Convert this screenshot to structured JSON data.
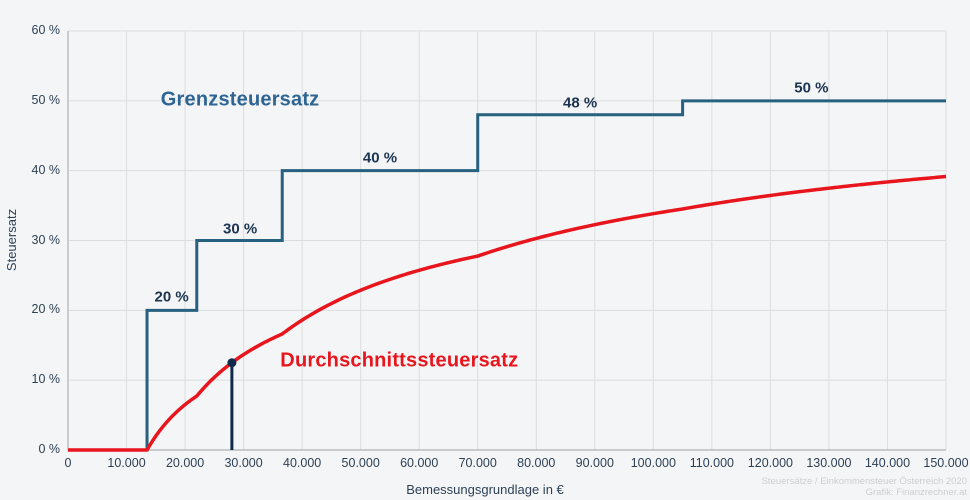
{
  "colors": {
    "background": "#f4f5f7",
    "grid": "#dcdde0",
    "axis": "#b9bcc0",
    "tick_text": "#2e4154",
    "axis_title_text": "#2e4154",
    "step_line": "#27617f",
    "step_label_text": "#1b3450",
    "grenz_label_text": "#2e6593",
    "avg_line": "#e8151d",
    "avg_label_text": "#e8151d",
    "marker": "#102b49",
    "footer_text": "#cdced0"
  },
  "footer": {
    "line1": "Steuersätze / Einkommensteuer Österreich 2020",
    "line2": "Grafik: Finanzrechner.at"
  },
  "chart_data": {
    "type": "line",
    "title": "",
    "xlabel": "Bemessungsgrundlage in €",
    "ylabel": "Steuersatz",
    "xlim": [
      0,
      150000
    ],
    "ylim": [
      0,
      60
    ],
    "grid": true,
    "x_ticks": [
      {
        "value": 0,
        "label": "0"
      },
      {
        "value": 10000,
        "label": "10.000"
      },
      {
        "value": 20000,
        "label": "20.000"
      },
      {
        "value": 30000,
        "label": "30.000"
      },
      {
        "value": 40000,
        "label": "40.000"
      },
      {
        "value": 50000,
        "label": "50.000"
      },
      {
        "value": 60000,
        "label": "60.000"
      },
      {
        "value": 70000,
        "label": "70.000"
      },
      {
        "value": 80000,
        "label": "80.000"
      },
      {
        "value": 90000,
        "label": "90.000"
      },
      {
        "value": 100000,
        "label": "100.000"
      },
      {
        "value": 110000,
        "label": "110.000"
      },
      {
        "value": 120000,
        "label": "120.000"
      },
      {
        "value": 130000,
        "label": "130.000"
      },
      {
        "value": 140000,
        "label": "140.000"
      },
      {
        "value": 150000,
        "label": "150.000"
      }
    ],
    "y_ticks": [
      {
        "value": 0,
        "label": "0 %"
      },
      {
        "value": 10,
        "label": "10 %"
      },
      {
        "value": 20,
        "label": "20 %"
      },
      {
        "value": 30,
        "label": "30 %"
      },
      {
        "value": 40,
        "label": "40 %"
      },
      {
        "value": 50,
        "label": "50 %"
      },
      {
        "value": 60,
        "label": "60 %"
      }
    ],
    "series": [
      {
        "name": "Grenzsteuersatz",
        "type": "step",
        "label": {
          "text": "Grenzsteuersatz",
          "x": 29400,
          "y": 50.1
        },
        "brackets": [
          {
            "threshold": 0,
            "rate": 0
          },
          {
            "threshold": 13500,
            "rate": 20
          },
          {
            "threshold": 22000,
            "rate": 30
          },
          {
            "threshold": 36600,
            "rate": 40
          },
          {
            "threshold": 70000,
            "rate": 48
          },
          {
            "threshold": 105000,
            "rate": 50
          }
        ],
        "step_labels": [
          {
            "text": "20 %",
            "x": 17700,
            "y": 21.9
          },
          {
            "text": "30 %",
            "x": 29400,
            "y": 31.7
          },
          {
            "text": "40 %",
            "x": 53300,
            "y": 41.8
          },
          {
            "text": "48 %",
            "x": 87500,
            "y": 49.7
          },
          {
            "text": "50 %",
            "x": 127000,
            "y": 51.9
          }
        ]
      },
      {
        "name": "Durchschnittssteuersatz",
        "type": "average-curve",
        "label": {
          "text": "Durchschnittssteuersatz",
          "x": 56600,
          "y": 12.7
        },
        "key_points": [
          {
            "x": 13500,
            "y": 0
          },
          {
            "x": 22000,
            "y": 7.7
          },
          {
            "x": 28000,
            "y": 12.5
          },
          {
            "x": 36600,
            "y": 16.6
          },
          {
            "x": 70000,
            "y": 27.8
          },
          {
            "x": 105000,
            "y": 34.5
          },
          {
            "x": 150000,
            "y": 39.2
          }
        ]
      }
    ],
    "marker": {
      "x": 28000,
      "y": 12.5
    }
  }
}
